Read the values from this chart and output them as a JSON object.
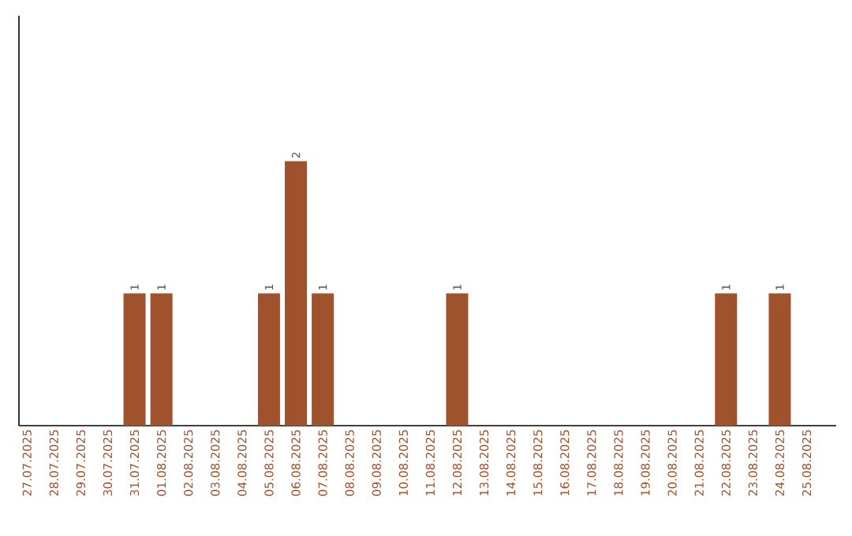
{
  "chart_data": {
    "type": "bar",
    "categories": [
      "27.07.2025",
      "28.07.2025",
      "29.07.2025",
      "30.07.2025",
      "31.07.2025",
      "01.08.2025",
      "02.08.2025",
      "03.08.2025",
      "04.08.2025",
      "05.08.2025",
      "06.08.2025",
      "07.08.2025",
      "08.08.2025",
      "09.08.2025",
      "10.08.2025",
      "11.08.2025",
      "12.08.2025",
      "13.08.2025",
      "14.08.2025",
      "15.08.2025",
      "16.08.2025",
      "17.08.2025",
      "18.08.2025",
      "19.08.2025",
      "20.08.2025",
      "21.08.2025",
      "22.08.2025",
      "23.08.2025",
      "24.08.2025",
      "25.08.2025"
    ],
    "values": [
      0,
      0,
      0,
      0,
      1,
      1,
      0,
      0,
      0,
      1,
      2,
      1,
      0,
      0,
      0,
      0,
      1,
      0,
      0,
      0,
      0,
      0,
      0,
      0,
      0,
      0,
      1,
      0,
      1,
      0
    ],
    "value_labels": [
      null,
      null,
      null,
      null,
      "1",
      "1",
      null,
      null,
      null,
      "1",
      "2",
      "1",
      null,
      null,
      null,
      null,
      "1",
      null,
      null,
      null,
      null,
      null,
      null,
      null,
      null,
      null,
      "1",
      null,
      "1",
      null
    ],
    "color": "#a0522d",
    "ylim": [
      0,
      3.1
    ]
  }
}
